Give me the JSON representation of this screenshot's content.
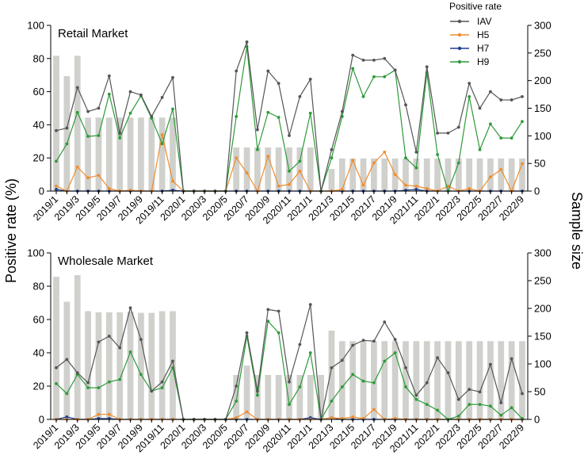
{
  "figure": {
    "ylabel_left": "Positive rate (%)",
    "ylabel_right": "Sample size"
  },
  "legend": {
    "title": "Positive rate",
    "placement": "top-right",
    "entries": [
      {
        "name": "IAV",
        "color": "#555555"
      },
      {
        "name": "H5",
        "color": "#f08c2e"
      },
      {
        "name": "H7",
        "color": "#1f3f8f"
      },
      {
        "name": "H9",
        "color": "#2e9a3a"
      }
    ]
  },
  "colors": {
    "bars": "#d0d0cc",
    "axis": "#000000",
    "IAV": "#555555",
    "H5": "#f08c2e",
    "H7": "#1f3f8f",
    "H9": "#2e9a3a"
  },
  "chart_data": [
    {
      "type": "bar+line",
      "title": "Retail Market",
      "xlabel": "",
      "ylabel": "Positive rate (%)",
      "y2label": "Sample size",
      "ylim": [
        0,
        100
      ],
      "y2lim": [
        0,
        300
      ],
      "yticks": [
        0,
        20,
        40,
        60,
        80,
        100
      ],
      "y2ticks": [
        0,
        50,
        100,
        150,
        200,
        250,
        300
      ],
      "x_tick_labels": [
        "2019/1",
        "2019/3",
        "2019/5",
        "2019/7",
        "2019/9",
        "2019/11",
        "2020/1",
        "2020/3",
        "2020/5",
        "2020/7",
        "2020/9",
        "2020/11",
        "2021/1",
        "2021/3",
        "2021/5",
        "2021/7",
        "2021/9",
        "2021/11",
        "2022/1",
        "2022/3",
        "2022/5",
        "2022/7",
        "2022/9"
      ],
      "categories": [
        "2019/1",
        "2019/2",
        "2019/3",
        "2019/4",
        "2019/5",
        "2019/6",
        "2019/7",
        "2019/8",
        "2019/9",
        "2019/10",
        "2019/11",
        "2019/12",
        "2020/1",
        "2020/2",
        "2020/3",
        "2020/4",
        "2020/5",
        "2020/6",
        "2020/7",
        "2020/8",
        "2020/9",
        "2020/10",
        "2020/11",
        "2020/12",
        "2021/1",
        "2021/2",
        "2021/3",
        "2021/4",
        "2021/5",
        "2021/6",
        "2021/7",
        "2021/8",
        "2021/9",
        "2021/10",
        "2021/11",
        "2021/12",
        "2022/1",
        "2022/2",
        "2022/3",
        "2022/4",
        "2022/5",
        "2022/6",
        "2022/7",
        "2022/8",
        "2022/9"
      ],
      "sample_size": [
        245,
        208,
        245,
        133,
        133,
        133,
        133,
        133,
        133,
        133,
        133,
        133,
        0,
        0,
        0,
        0,
        0,
        79,
        79,
        79,
        79,
        79,
        79,
        79,
        79,
        0,
        40,
        59,
        59,
        59,
        59,
        59,
        59,
        59,
        59,
        59,
        59,
        59,
        59,
        59,
        59,
        59,
        59,
        59,
        59
      ],
      "series": [
        {
          "name": "IAV",
          "values": [
            36.5,
            38,
            62.5,
            48,
            50,
            69.5,
            35,
            60,
            58,
            45,
            56.5,
            68.5,
            0,
            0,
            0,
            0,
            0,
            72.5,
            90,
            37,
            72.5,
            65,
            33.5,
            57,
            67.5,
            0,
            25,
            48,
            82,
            79,
            79,
            80,
            73,
            52,
            23.5,
            75,
            35,
            35,
            38.5,
            65,
            50,
            60,
            55,
            55,
            57
          ]
        },
        {
          "name": "H5",
          "values": [
            3,
            0,
            14.5,
            8,
            9.5,
            1.5,
            0,
            0.5,
            0,
            0,
            34,
            6,
            0,
            0,
            0,
            0,
            0,
            20,
            11,
            0,
            21,
            3,
            4,
            12,
            0,
            0,
            0,
            1,
            18.5,
            3.5,
            17,
            23.5,
            10,
            3.5,
            3,
            1.5,
            0,
            3,
            0,
            1.5,
            0,
            8.5,
            13,
            0,
            16.5
          ]
        },
        {
          "name": "H7",
          "values": [
            1,
            0,
            0,
            0,
            0,
            0,
            0,
            0,
            0,
            0,
            0,
            0.5,
            0,
            0,
            0,
            0,
            0,
            0,
            0,
            0,
            0,
            0,
            0,
            0,
            0,
            0,
            0,
            0,
            0,
            0,
            0,
            0,
            0,
            0.5,
            1,
            0,
            0,
            0,
            0,
            0,
            0,
            0,
            0,
            0,
            0
          ]
        },
        {
          "name": "H9",
          "values": [
            18,
            28.5,
            47.5,
            33,
            33.5,
            58.5,
            32,
            47,
            57.5,
            44,
            28.5,
            49.5,
            0,
            0,
            0,
            0,
            0,
            45,
            87,
            25,
            47.5,
            44.5,
            12,
            18,
            47,
            0,
            20,
            45,
            74,
            57,
            69,
            69,
            73,
            20,
            14,
            71.5,
            22,
            0,
            17,
            57,
            25,
            40.5,
            32,
            32,
            42
          ]
        }
      ]
    },
    {
      "type": "bar+line",
      "title": "Wholesale Market",
      "xlabel": "",
      "ylabel": "Positive rate (%)",
      "y2label": "Sample size",
      "ylim": [
        0,
        100
      ],
      "y2lim": [
        0,
        300
      ],
      "yticks": [
        0,
        20,
        40,
        60,
        80,
        100
      ],
      "y2ticks": [
        0,
        50,
        100,
        150,
        200,
        250,
        300
      ],
      "x_tick_labels": [
        "2019/1",
        "2019/3",
        "2019/5",
        "2019/7",
        "2019/9",
        "2019/11",
        "2020/1",
        "2020/3",
        "2020/5",
        "2020/7",
        "2020/9",
        "2020/11",
        "2021/1",
        "2021/3",
        "2021/5",
        "2021/7",
        "2021/9",
        "2021/11",
        "2022/1",
        "2022/3",
        "2022/5",
        "2022/7",
        "2022/9"
      ],
      "categories": [
        "2019/1",
        "2019/2",
        "2019/3",
        "2019/4",
        "2019/5",
        "2019/6",
        "2019/7",
        "2019/8",
        "2019/9",
        "2019/10",
        "2019/11",
        "2019/12",
        "2020/1",
        "2020/2",
        "2020/3",
        "2020/4",
        "2020/5",
        "2020/6",
        "2020/7",
        "2020/8",
        "2020/9",
        "2020/10",
        "2020/11",
        "2020/12",
        "2021/1",
        "2021/2",
        "2021/3",
        "2021/4",
        "2021/5",
        "2021/6",
        "2021/7",
        "2021/8",
        "2021/9",
        "2021/10",
        "2021/11",
        "2021/12",
        "2022/1",
        "2022/2",
        "2022/3",
        "2022/4",
        "2022/5",
        "2022/6",
        "2022/7",
        "2022/8",
        "2022/9"
      ],
      "sample_size": [
        257,
        212,
        260,
        195,
        193,
        193,
        193,
        194,
        192,
        192,
        195,
        195,
        0,
        0,
        0,
        0,
        0,
        80,
        97,
        80,
        80,
        80,
        80,
        80,
        80,
        80,
        160,
        141,
        141,
        141,
        141,
        141,
        141,
        141,
        141,
        141,
        141,
        141,
        141,
        141,
        141,
        141,
        141,
        141,
        141
      ],
      "series": [
        {
          "name": "IAV",
          "values": [
            31,
            36,
            28,
            22,
            46.5,
            50,
            43,
            67,
            48,
            17,
            22.5,
            35,
            0,
            0,
            0,
            0,
            0,
            20,
            52,
            17,
            66,
            65,
            22.5,
            45,
            69,
            0,
            31,
            35.5,
            44.5,
            47.5,
            47,
            58.5,
            48,
            31,
            14.5,
            22,
            37,
            28,
            12,
            18,
            16.5,
            33,
            10,
            36.5,
            15.5
          ]
        },
        {
          "name": "H5",
          "values": [
            0,
            0,
            0,
            0,
            3,
            3,
            0,
            0,
            0,
            0,
            0,
            0,
            0,
            0,
            0,
            0,
            0,
            1,
            4.5,
            0,
            0,
            0,
            0,
            0,
            0,
            0,
            1,
            0.5,
            1.5,
            0.5,
            6,
            0,
            0.5,
            0,
            0,
            0,
            0,
            0,
            0,
            0,
            0,
            0,
            0,
            0,
            0
          ]
        },
        {
          "name": "H7",
          "values": [
            0,
            1.5,
            0,
            0,
            0.5,
            0.5,
            0,
            0,
            0,
            0,
            0,
            0,
            0,
            0,
            0,
            0,
            0,
            0,
            0,
            0,
            0,
            0,
            0,
            0,
            1,
            0,
            1,
            0,
            0,
            0,
            0,
            0,
            0,
            0,
            0,
            0,
            0,
            0,
            0,
            0,
            0,
            0,
            0,
            0,
            0
          ]
        },
        {
          "name": "H9",
          "values": [
            21.5,
            15.5,
            27,
            19,
            19,
            22.5,
            24,
            40.5,
            27,
            17,
            19,
            31,
            0,
            0,
            0,
            0,
            0,
            11,
            50,
            14.5,
            59,
            52,
            9,
            19.5,
            40,
            0,
            11,
            19.5,
            27,
            23,
            22,
            35,
            40,
            19.5,
            12,
            9,
            5.5,
            0,
            2,
            9,
            9,
            8,
            2.5,
            7,
            0.5
          ]
        }
      ]
    }
  ]
}
